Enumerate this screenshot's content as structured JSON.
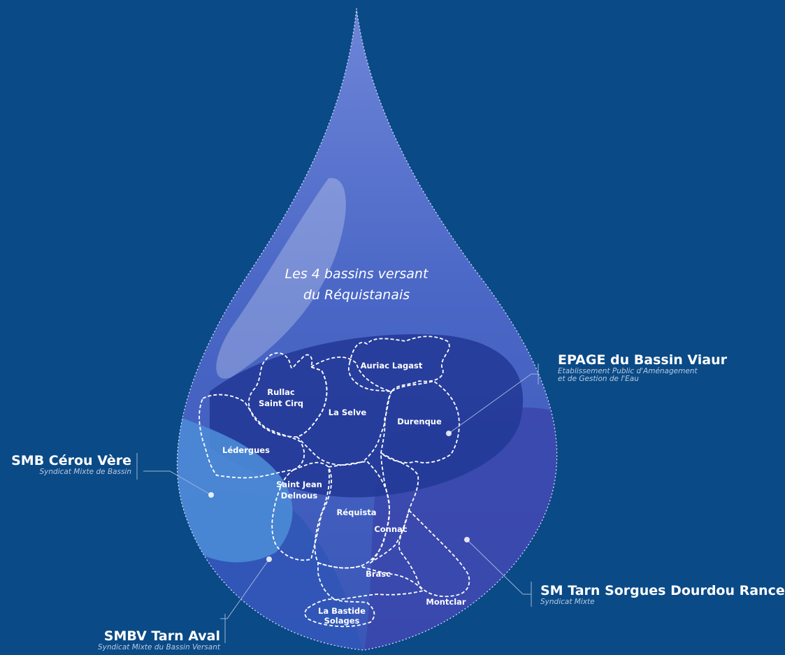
{
  "map": {
    "title_line1": "Les 4 bassins versant",
    "title_line2": "du Réquistanais",
    "basins": [
      {
        "name": "EPAGE du Bassin Viaur",
        "subtitle_line1": "Etablissement Public d'Aménagement",
        "subtitle_line2": "et de Gestion de l'Eau",
        "color": "#233f9c"
      },
      {
        "name": "SMB Cérou Vère",
        "subtitle_line1": "Syndicat Mixte de Bassin",
        "color": "#3f7ed0"
      },
      {
        "name": "SMBV Tarn Aval",
        "subtitle_line1": "Syndicat Mixte du Bassin Versant",
        "color": "#2f5ab8"
      },
      {
        "name": "SM Tarn Sorgues Dourdou Rance",
        "subtitle_line1": "Syndicat Mixte",
        "color": "#3a4fb3"
      }
    ],
    "communes": [
      "Auriac Lagast",
      "Rullac",
      "Saint Cirq",
      "La Selve",
      "Durenque",
      "Lédergues",
      "Saint Jean",
      "Delnous",
      "Réquista",
      "Connac",
      "Brasc",
      "Montclar",
      "La Bastide",
      "Solages"
    ],
    "colors": {
      "background": "#0a4a86",
      "drop": "#3b5fbe",
      "borders": "#ffffff"
    }
  }
}
